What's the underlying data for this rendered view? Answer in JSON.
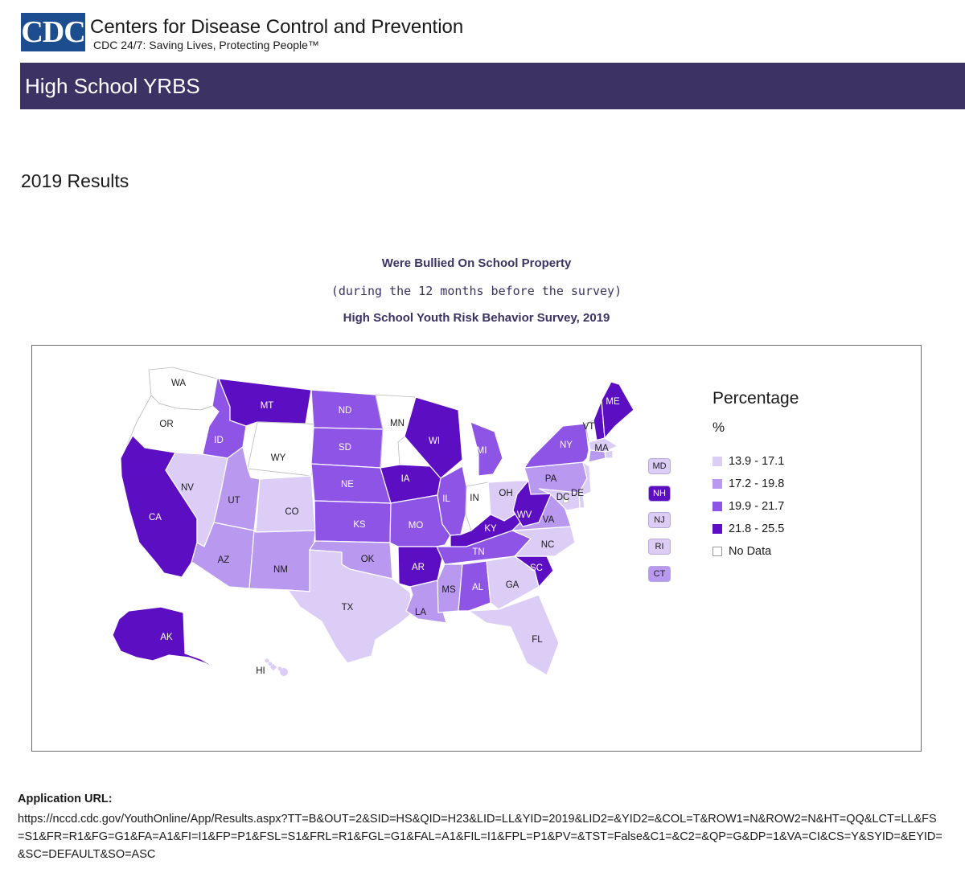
{
  "header": {
    "logo_text": "CDC",
    "org_name": "Centers for Disease Control and Prevention",
    "tagline": "CDC 24/7: Saving Lives, Protecting People™"
  },
  "banner": {
    "title": "High School YRBS"
  },
  "results_heading": "2019 Results",
  "map": {
    "title": "Were Bullied On School Property",
    "subtitle": "(during the 12 months before the survey)",
    "survey": "High School Youth Risk Behavior Survey, 2019",
    "legend": {
      "title": "Percentage",
      "unit": "%",
      "items": [
        {
          "label": "13.9 - 17.1",
          "color": "#dccdf7"
        },
        {
          "label": "17.2 - 19.8",
          "color": "#b999ef"
        },
        {
          "label": "19.9 - 21.7",
          "color": "#8e54e6"
        },
        {
          "label": "21.8 - 25.5",
          "color": "#5c0fc2"
        },
        {
          "label": "No Data",
          "color": "#ffffff"
        }
      ]
    },
    "states": [
      {
        "abbr": "WA",
        "cls": 4
      },
      {
        "abbr": "OR",
        "cls": 4
      },
      {
        "abbr": "CA",
        "cls": 3
      },
      {
        "abbr": "NV",
        "cls": 0
      },
      {
        "abbr": "ID",
        "cls": 2
      },
      {
        "abbr": "MT",
        "cls": 3
      },
      {
        "abbr": "WY",
        "cls": 4
      },
      {
        "abbr": "UT",
        "cls": 1
      },
      {
        "abbr": "AZ",
        "cls": 1
      },
      {
        "abbr": "CO",
        "cls": 0
      },
      {
        "abbr": "NM",
        "cls": 1
      },
      {
        "abbr": "ND",
        "cls": 2
      },
      {
        "abbr": "SD",
        "cls": 2
      },
      {
        "abbr": "NE",
        "cls": 2
      },
      {
        "abbr": "KS",
        "cls": 2
      },
      {
        "abbr": "OK",
        "cls": 1
      },
      {
        "abbr": "TX",
        "cls": 0
      },
      {
        "abbr": "MN",
        "cls": 4
      },
      {
        "abbr": "IA",
        "cls": 3
      },
      {
        "abbr": "MO",
        "cls": 2
      },
      {
        "abbr": "AR",
        "cls": 3
      },
      {
        "abbr": "LA",
        "cls": 1
      },
      {
        "abbr": "WI",
        "cls": 3
      },
      {
        "abbr": "IL",
        "cls": 2
      },
      {
        "abbr": "MI",
        "cls": 2
      },
      {
        "abbr": "IN",
        "cls": 4
      },
      {
        "abbr": "OH",
        "cls": 0
      },
      {
        "abbr": "KY",
        "cls": 3
      },
      {
        "abbr": "TN",
        "cls": 2
      },
      {
        "abbr": "MS",
        "cls": 1
      },
      {
        "abbr": "AL",
        "cls": 2
      },
      {
        "abbr": "GA",
        "cls": 0
      },
      {
        "abbr": "FL",
        "cls": 0
      },
      {
        "abbr": "SC",
        "cls": 3
      },
      {
        "abbr": "NC",
        "cls": 0
      },
      {
        "abbr": "VA",
        "cls": 1
      },
      {
        "abbr": "WV",
        "cls": 3
      },
      {
        "abbr": "PA",
        "cls": 1
      },
      {
        "abbr": "NY",
        "cls": 2
      },
      {
        "abbr": "VT",
        "cls": 4
      },
      {
        "abbr": "NH",
        "cls": 3
      },
      {
        "abbr": "ME",
        "cls": 3
      },
      {
        "abbr": "MA",
        "cls": 0
      },
      {
        "abbr": "RI",
        "cls": 0
      },
      {
        "abbr": "CT",
        "cls": 1
      },
      {
        "abbr": "NJ",
        "cls": 0
      },
      {
        "abbr": "DE",
        "cls": 0
      },
      {
        "abbr": "MD",
        "cls": 0
      },
      {
        "abbr": "DC",
        "cls": 4
      },
      {
        "abbr": "AK",
        "cls": 3
      },
      {
        "abbr": "HI",
        "cls": 0
      }
    ],
    "small_state_boxes": [
      {
        "abbr": "MD",
        "cls": 0
      },
      {
        "abbr": "NH",
        "cls": 3
      },
      {
        "abbr": "NJ",
        "cls": 0
      },
      {
        "abbr": "RI",
        "cls": 0
      },
      {
        "abbr": "CT",
        "cls": 1
      }
    ]
  },
  "footer": {
    "label": "Application URL:",
    "url": "https://nccd.cdc.gov/YouthOnline/App/Results.aspx?TT=B&OUT=2&SID=HS&QID=H23&LID=LL&YID=2019&LID2=&YID2=&COL=T&ROW1=N&ROW2=N&HT=QQ&LCT=LL&FS=S1&FR=R1&FG=G1&FA=A1&FI=I1&FP=P1&FSL=S1&FRL=R1&FGL=G1&FAL=A1&FIL=I1&FPL=P1&PV=&TST=False&C1=&C2=&QP=G&DP=1&VA=CI&CS=Y&SYID=&EYID=&SC=DEFAULT&SO=ASC"
  }
}
